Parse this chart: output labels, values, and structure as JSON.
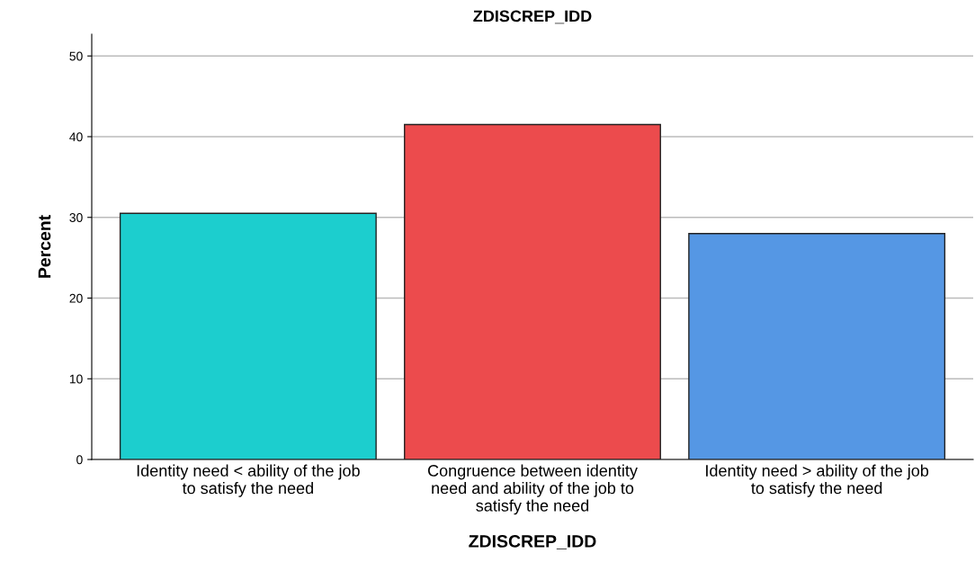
{
  "chart_data": {
    "type": "bar",
    "title": "ZDISCREP_IDD",
    "xlabel": "ZDISCREP_IDD",
    "ylabel": "Percent",
    "categories": [
      "Identity need < ability of the job\nto satisfy the need",
      "Congruence between identity\nneed and ability of the job to\nsatisfy the need",
      "Identity need > ability of the job\nto satisfy the need"
    ],
    "values": [
      30.5,
      41.5,
      28.0
    ],
    "colors": [
      "#1ccece",
      "#ec4b4d",
      "#5597e4"
    ],
    "ylim": [
      0,
      52.7
    ],
    "yticks": [
      0,
      10,
      20,
      30,
      40,
      50
    ],
    "grid": "y",
    "legend": false
  }
}
